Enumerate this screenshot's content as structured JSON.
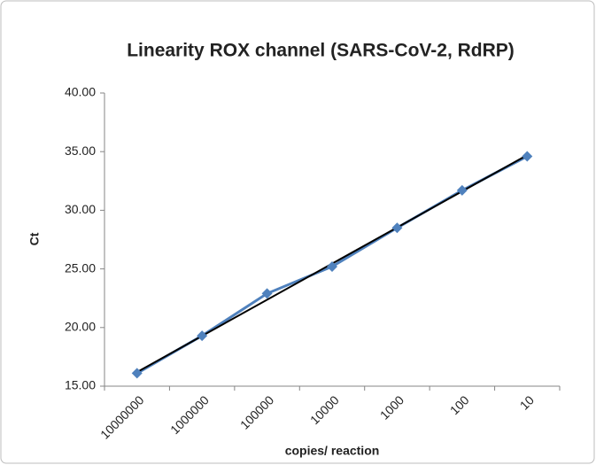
{
  "chart_data": {
    "type": "line",
    "title": "Linearity ROX channel (SARS-CoV-2, RdRP)",
    "x_label": "copies/ reaction",
    "y_label": "Ct",
    "categories": [
      "10000000",
      "1000000",
      "100000",
      "10000",
      "1000",
      "100",
      "10"
    ],
    "series": [
      {
        "color": "#4f81bd",
        "values": [
          16.1,
          19.3,
          22.9,
          25.2,
          28.5,
          31.7,
          34.6
        ]
      }
    ],
    "trendline": {
      "color": "#000000",
      "values": [
        16.2,
        34.7
      ]
    },
    "ylim": [
      15,
      40
    ],
    "yticks": [
      {
        "value": 15,
        "label": "15.00"
      },
      {
        "value": 20,
        "label": "20.00"
      },
      {
        "value": 25,
        "label": "25.00"
      },
      {
        "value": 30,
        "label": "30.00"
      },
      {
        "value": 35,
        "label": "35.00"
      },
      {
        "value": 40,
        "label": "40.00"
      }
    ],
    "grid": false
  }
}
